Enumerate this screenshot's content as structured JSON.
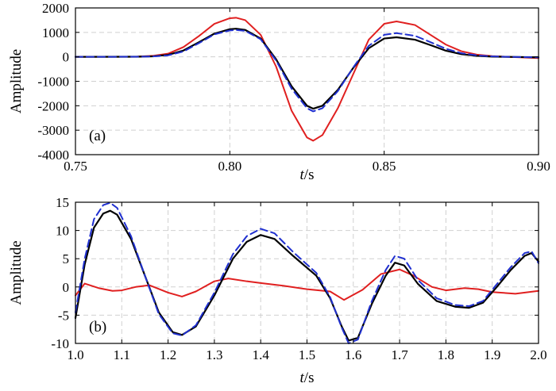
{
  "chart_data": [
    {
      "type": "line",
      "panel_label": "(a)",
      "xlabel_italic": "t",
      "xlabel_unit": "/s",
      "ylabel": "Amplitude",
      "xlim": [
        0.75,
        0.9
      ],
      "ylim": [
        -4000,
        2000
      ],
      "xticks": [
        "0.75",
        "0.80",
        "0.85",
        "0.90"
      ],
      "xtick_values": [
        0.75,
        0.8,
        0.85,
        0.9
      ],
      "yticks": [
        "2000",
        "1000",
        "0",
        "-1000",
        "-2000",
        "-3000",
        "-4000"
      ],
      "ytick_values": [
        2000,
        1000,
        0,
        -1000,
        -2000,
        -3000,
        -4000
      ],
      "grid": true,
      "series": [
        {
          "color": "#e02020",
          "dash": "solid",
          "width": 2,
          "x": [
            0.75,
            0.77,
            0.775,
            0.78,
            0.785,
            0.79,
            0.795,
            0.8,
            0.802,
            0.805,
            0.81,
            0.815,
            0.82,
            0.825,
            0.827,
            0.83,
            0.835,
            0.84,
            0.845,
            0.85,
            0.854,
            0.86,
            0.865,
            0.87,
            0.875,
            0.88,
            0.885,
            0.89,
            0.9
          ],
          "y": [
            0,
            10,
            40,
            130,
            400,
            850,
            1350,
            1580,
            1600,
            1500,
            900,
            -400,
            -2200,
            -3300,
            -3430,
            -3200,
            -2100,
            -700,
            700,
            1350,
            1450,
            1300,
            900,
            500,
            230,
            90,
            30,
            0,
            -50
          ]
        },
        {
          "color": "#000000",
          "dash": "solid",
          "width": 2.2,
          "x": [
            0.75,
            0.77,
            0.775,
            0.78,
            0.785,
            0.79,
            0.795,
            0.8,
            0.802,
            0.805,
            0.81,
            0.815,
            0.82,
            0.825,
            0.827,
            0.83,
            0.835,
            0.84,
            0.845,
            0.85,
            0.854,
            0.86,
            0.865,
            0.87,
            0.875,
            0.88,
            0.885,
            0.89,
            0.9
          ],
          "y": [
            0,
            5,
            20,
            80,
            260,
            600,
            950,
            1130,
            1150,
            1100,
            750,
            -100,
            -1200,
            -2000,
            -2120,
            -2000,
            -1350,
            -450,
            350,
            750,
            800,
            700,
            480,
            250,
            110,
            40,
            10,
            0,
            -20
          ]
        },
        {
          "color": "#2030d0",
          "dash": "dashed",
          "width": 2,
          "x": [
            0.75,
            0.77,
            0.775,
            0.78,
            0.785,
            0.79,
            0.795,
            0.8,
            0.802,
            0.805,
            0.81,
            0.815,
            0.82,
            0.825,
            0.827,
            0.83,
            0.835,
            0.84,
            0.845,
            0.85,
            0.854,
            0.86,
            0.865,
            0.87,
            0.875,
            0.88,
            0.885,
            0.89,
            0.9
          ],
          "y": [
            0,
            5,
            15,
            60,
            220,
            560,
            920,
            1080,
            1100,
            1060,
            720,
            -150,
            -1300,
            -2100,
            -2230,
            -2100,
            -1400,
            -430,
            450,
            900,
            970,
            860,
            600,
            330,
            150,
            60,
            20,
            0,
            -20
          ]
        }
      ]
    },
    {
      "type": "line",
      "panel_label": "(b)",
      "xlabel_italic": "t",
      "xlabel_unit": "/s",
      "ylabel": "Amplitude",
      "xlim": [
        1.0,
        2.0
      ],
      "ylim": [
        -10,
        15
      ],
      "xticks": [
        "1.0",
        "1.1",
        "1.2",
        "1.3",
        "1.4",
        "1.5",
        "1.6",
        "1.7",
        "1.8",
        "1.9",
        "2.0"
      ],
      "xtick_values": [
        1.0,
        1.1,
        1.2,
        1.3,
        1.4,
        1.5,
        1.6,
        1.7,
        1.8,
        1.9,
        2.0
      ],
      "yticks": [
        "15",
        "10",
        "5",
        "0",
        "-5",
        "-10"
      ],
      "ytick_values": [
        15,
        10,
        5,
        0,
        -5,
        -10
      ],
      "grid": true,
      "series": [
        {
          "color": "#e02020",
          "dash": "solid",
          "width": 2,
          "x": [
            1.0,
            1.02,
            1.05,
            1.08,
            1.1,
            1.13,
            1.16,
            1.2,
            1.23,
            1.26,
            1.3,
            1.33,
            1.37,
            1.4,
            1.45,
            1.5,
            1.55,
            1.58,
            1.62,
            1.66,
            1.7,
            1.73,
            1.77,
            1.8,
            1.84,
            1.87,
            1.9,
            1.95,
            2.0
          ],
          "y": [
            -1.5,
            0.6,
            -0.2,
            -0.7,
            -0.6,
            0,
            0.3,
            -1.0,
            -1.7,
            -0.8,
            1.0,
            1.5,
            1.0,
            0.7,
            0.2,
            -0.4,
            -0.8,
            -2.3,
            -0.5,
            2.3,
            3.1,
            2.0,
            0,
            -0.6,
            -0.2,
            -0.4,
            -0.9,
            -1.2,
            -0.7
          ]
        },
        {
          "color": "#000000",
          "dash": "solid",
          "width": 2.2,
          "x": [
            1.0,
            1.02,
            1.04,
            1.06,
            1.075,
            1.09,
            1.12,
            1.15,
            1.18,
            1.21,
            1.23,
            1.26,
            1.3,
            1.34,
            1.37,
            1.4,
            1.43,
            1.47,
            1.52,
            1.55,
            1.575,
            1.59,
            1.61,
            1.64,
            1.67,
            1.69,
            1.71,
            1.74,
            1.78,
            1.82,
            1.85,
            1.88,
            1.91,
            1.94,
            1.97,
            1.985,
            2.0
          ],
          "y": [
            -5.5,
            4,
            10.5,
            13,
            13.5,
            12.8,
            8.5,
            2,
            -4.5,
            -8,
            -8.5,
            -7,
            -1.5,
            5,
            8,
            9.2,
            8.5,
            5.5,
            2,
            -2,
            -7,
            -9.5,
            -9,
            -3,
            2,
            4.3,
            3.8,
            0.5,
            -2.5,
            -3.5,
            -3.7,
            -2.8,
            0,
            3,
            5.5,
            6,
            4.5
          ]
        },
        {
          "color": "#2030d0",
          "dash": "dashed",
          "width": 2,
          "x": [
            1.0,
            1.02,
            1.04,
            1.06,
            1.075,
            1.09,
            1.12,
            1.15,
            1.18,
            1.21,
            1.23,
            1.26,
            1.3,
            1.34,
            1.37,
            1.4,
            1.43,
            1.47,
            1.52,
            1.55,
            1.575,
            1.59,
            1.61,
            1.64,
            1.67,
            1.69,
            1.71,
            1.74,
            1.78,
            1.82,
            1.85,
            1.88,
            1.91,
            1.94,
            1.97,
            1.985,
            2.0
          ],
          "y": [
            -4.5,
            5,
            12,
            14.5,
            14.9,
            14,
            9,
            2,
            -4.8,
            -8.2,
            -8.6,
            -6.8,
            -1,
            5.8,
            9,
            10.3,
            9.5,
            6.2,
            2.5,
            -1.8,
            -7.2,
            -10,
            -9.3,
            -2.5,
            3,
            5.5,
            5,
            1.2,
            -2,
            -3.2,
            -3.4,
            -2.5,
            0.5,
            3.5,
            6,
            6.3,
            4.2
          ]
        }
      ]
    }
  ]
}
